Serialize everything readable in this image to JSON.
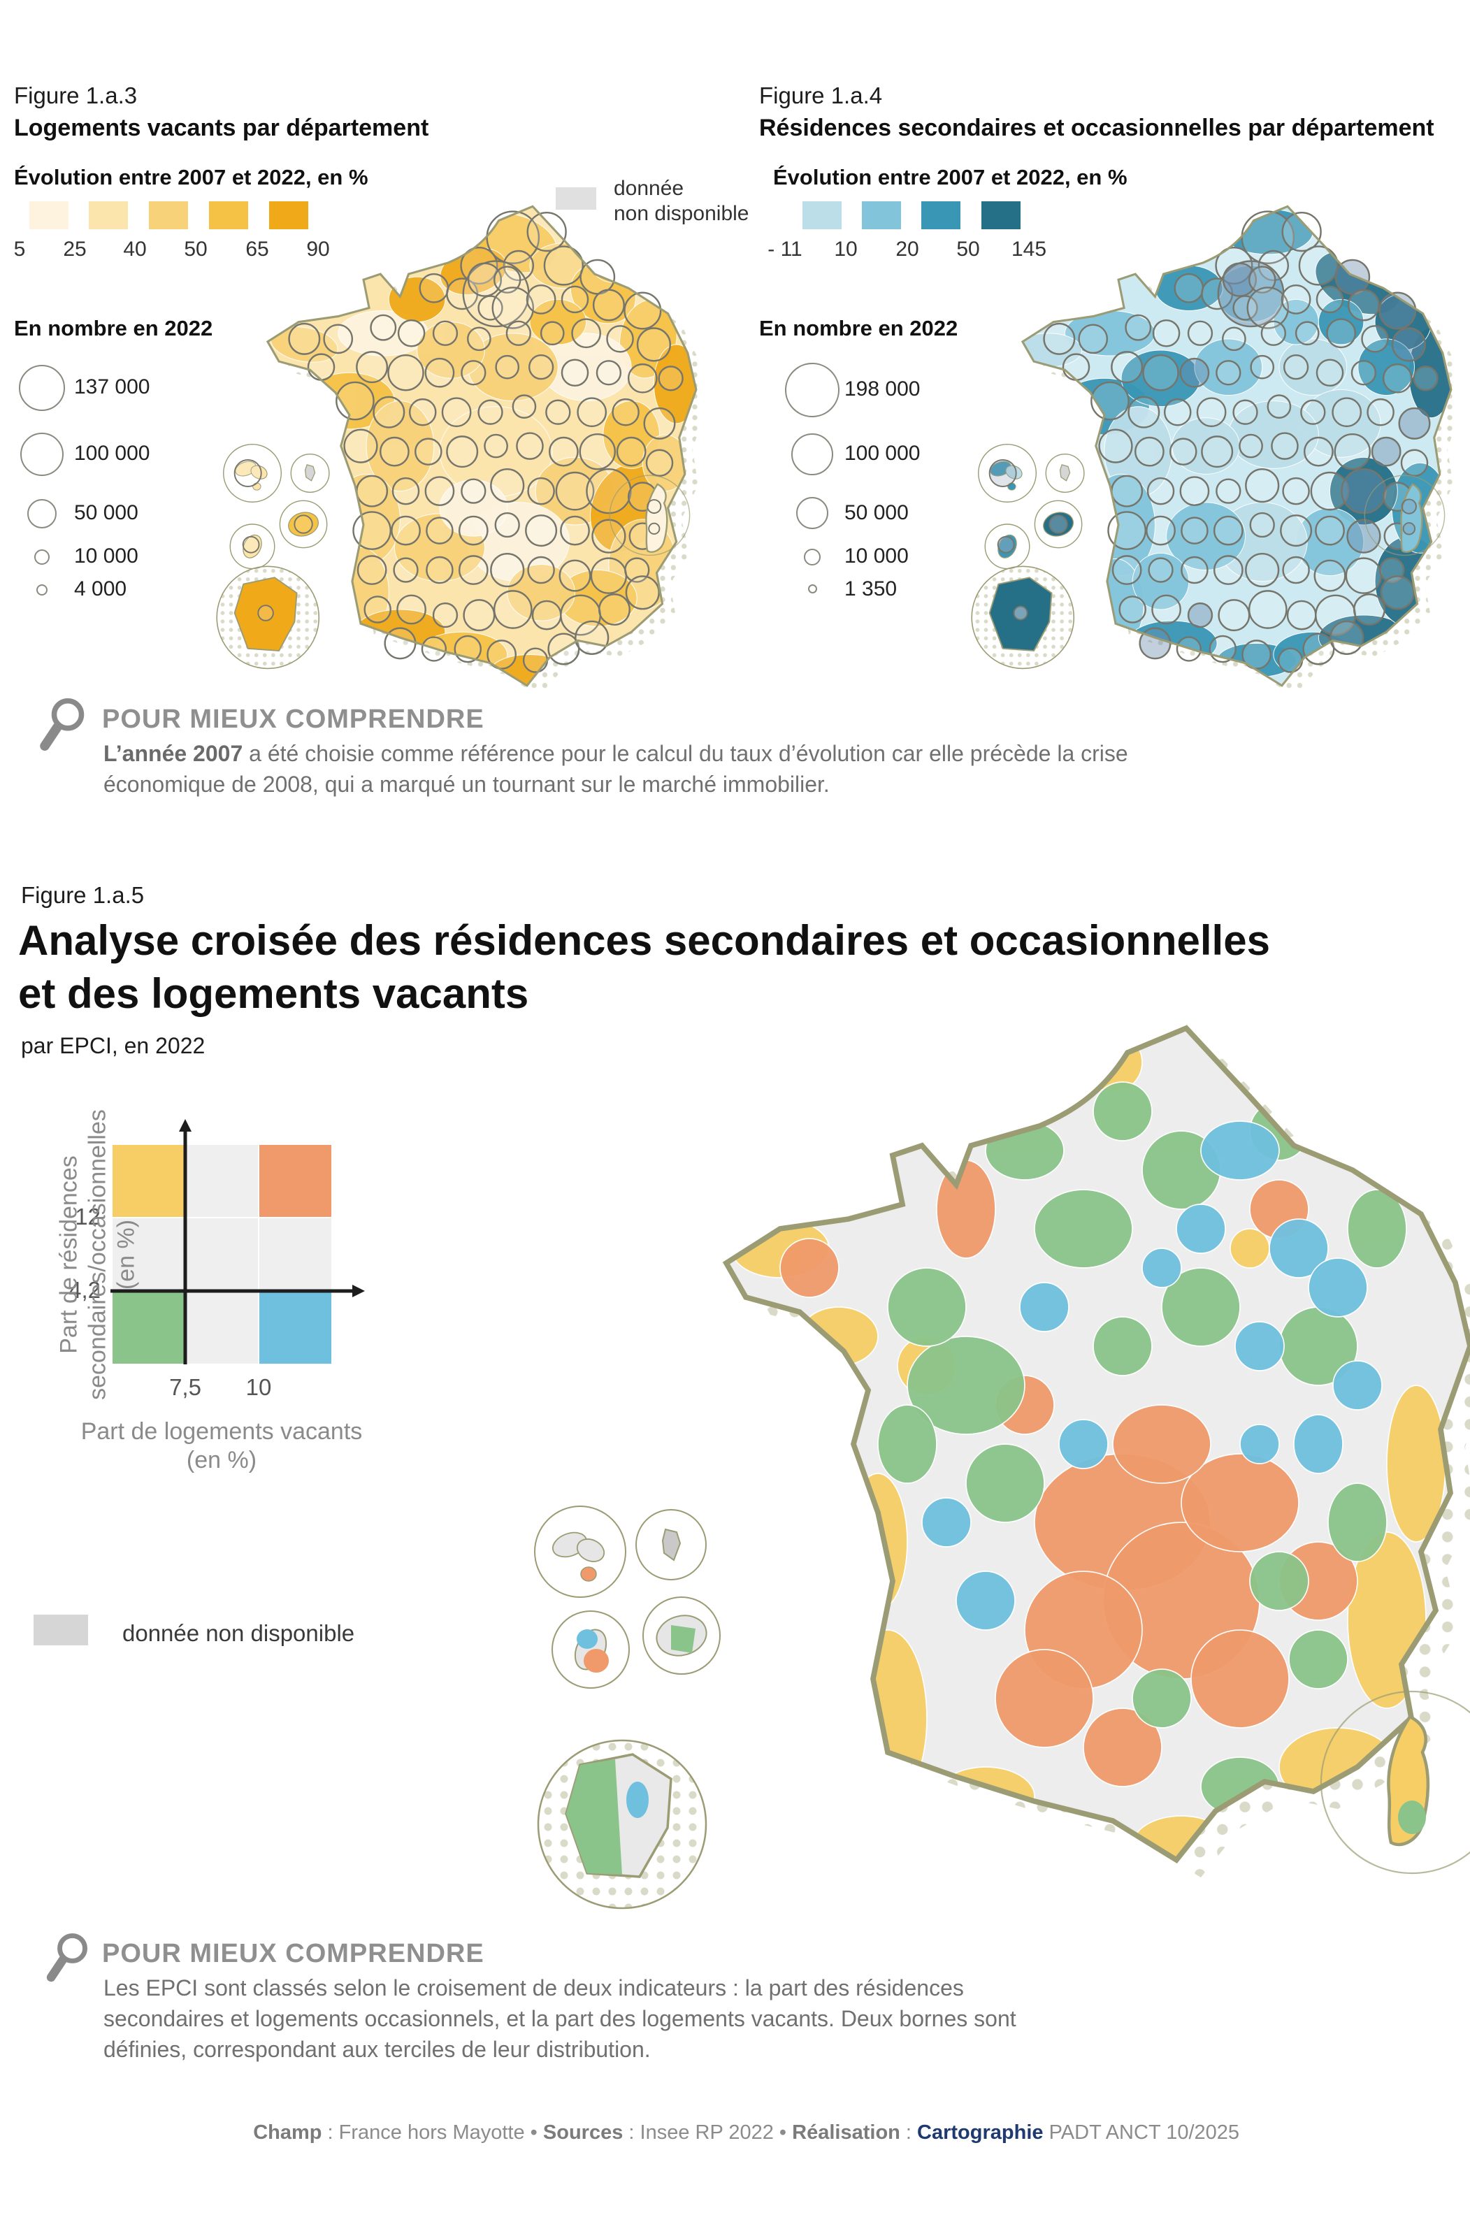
{
  "figure3": {
    "label": "Figure 1.a.3",
    "title": "Logements vacants par département",
    "evolution_legend": {
      "title": "Évolution entre 2007 et 2022, en %",
      "colors": [
        "#fdf3df",
        "#fce4ad",
        "#f8d279",
        "#f6c245",
        "#f0a919"
      ],
      "ticks": [
        "5",
        "25",
        "40",
        "50",
        "65",
        "90"
      ]
    },
    "no_data": {
      "line1": "donnée",
      "line2": "non disponible",
      "color": "#e0e0e0"
    },
    "size_legend": {
      "title": "En nombre en 2022",
      "values": [
        "137 000",
        "100 000",
        "50 000",
        "10 000",
        "4 000"
      ]
    },
    "map": {
      "base_color": "#fce4ad",
      "outline_color": "#9b9b74"
    }
  },
  "figure4": {
    "label": "Figure 1.a.4",
    "title": "Résidences secondaires et occasionnelles par département",
    "evolution_legend": {
      "title": "Évolution entre 2007 et 2022, en %",
      "colors": [
        "#bbdee9",
        "#82c5db",
        "#3996b5",
        "#256f87"
      ],
      "ticks": [
        "- 11",
        "10",
        "20",
        "50",
        "145"
      ]
    },
    "size_legend": {
      "title": "En nombre en 2022",
      "values": [
        "198 000",
        "100 000",
        "50 000",
        "10 000",
        "1 350"
      ]
    },
    "map": {
      "base_color": "#cde9f2",
      "outline_color": "#9b9b74"
    }
  },
  "note1": {
    "title": "POUR MIEUX COMPRENDRE",
    "bold": "L’année 2007",
    "rest": " a été choisie comme référence pour le calcul du taux d’évolution car elle précède la crise économique de 2008, qui a marqué un tournant sur le marché immobilier."
  },
  "figure5": {
    "label": "Figure 1.a.5",
    "title_line1": "Analyse croisée des résidences secondaires et occasionnelles",
    "title_line2": "et des logements vacants",
    "subtitle": "par EPCI, en 2022",
    "quadrant": {
      "y_label_line1": "Part de résidences",
      "y_label_line2": "secondaires/occasionnelles",
      "y_label_line3": "(en %)",
      "x_label_line1": "Part de logements vacants",
      "x_label_line2": "(en %)",
      "y_ticks": [
        "12",
        "4,2"
      ],
      "x_ticks": [
        "7,5",
        "10"
      ],
      "colors": {
        "top_left": "#f6ce65",
        "top_right": "#f09a6b",
        "bottom_left": "#8bc48a",
        "bottom_right": "#6fc0df",
        "neutral": "#efefef"
      }
    },
    "no_data_label": "donnée non disponible",
    "no_data_color": "#d6d6d6",
    "map": {
      "base_color": "#ededed",
      "outline_color": "#9b9b74"
    }
  },
  "note2": {
    "title": "POUR MIEUX COMPRENDRE",
    "text": "Les EPCI sont classés selon le croisement de deux indicateurs : la part des résidences secondaires et logements occasionnels, et la part des logements vacants. Deux bornes sont définies, correspondant aux terciles de leur distribution."
  },
  "footer": {
    "champ_label": "Champ",
    "champ_sep": " : ",
    "champ_value": "France hors Mayotte",
    "bullet": " • ",
    "sources_label": "Sources",
    "sources_sep": " : ",
    "sources_value": "Insee RP 2022",
    "realisation_label": "Réalisation",
    "realisation_sep": " : ",
    "cartographie": "Cartographie",
    "credit_suffix": " PADT ANCT 10/2025"
  }
}
